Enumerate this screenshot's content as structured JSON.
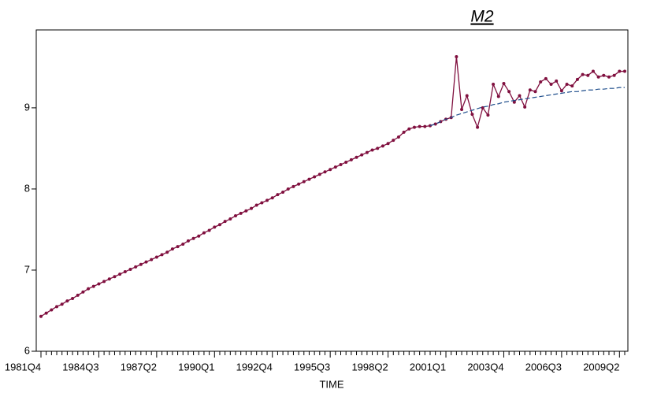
{
  "chart_data": {
    "type": "line",
    "title": "M2",
    "xlabel": "TIME",
    "categories": [
      "1981Q4",
      null,
      null,
      null,
      null,
      null,
      null,
      null,
      null,
      null,
      null,
      "1984Q3",
      null,
      null,
      null,
      null,
      null,
      null,
      null,
      null,
      null,
      null,
      "1987Q2",
      null,
      null,
      null,
      null,
      null,
      null,
      null,
      null,
      null,
      null,
      "1990Q1",
      null,
      null,
      null,
      null,
      null,
      null,
      null,
      null,
      null,
      null,
      "1992Q4",
      null,
      null,
      null,
      null,
      null,
      null,
      null,
      null,
      null,
      null,
      "1995Q3",
      null,
      null,
      null,
      null,
      null,
      null,
      null,
      null,
      null,
      null,
      "1998Q2",
      null,
      null,
      null,
      null,
      null,
      null,
      null,
      null,
      null,
      null,
      "2001Q1",
      null,
      null,
      null,
      null,
      null,
      null,
      null,
      null,
      null,
      null,
      "2003Q4",
      null,
      null,
      null,
      null,
      null,
      null,
      null,
      null,
      null,
      null,
      "2006Q3",
      null,
      null,
      null,
      null,
      null,
      null,
      null,
      null,
      null,
      null,
      "2009Q2",
      null
    ],
    "series": [
      {
        "color": "#80103f",
        "markers": true,
        "dashed": false,
        "values": [
          6.43,
          6.47,
          6.51,
          6.55,
          6.58,
          6.62,
          6.65,
          6.69,
          6.73,
          6.77,
          6.8,
          6.83,
          6.86,
          6.89,
          6.92,
          6.95,
          6.98,
          7.01,
          7.04,
          7.07,
          7.1,
          7.13,
          7.16,
          7.19,
          7.22,
          7.26,
          7.29,
          7.32,
          7.36,
          7.39,
          7.42,
          7.46,
          7.49,
          7.53,
          7.56,
          7.6,
          7.63,
          7.67,
          7.7,
          7.73,
          7.76,
          7.8,
          7.83,
          7.86,
          7.89,
          7.93,
          7.96,
          8.0,
          8.03,
          8.06,
          8.09,
          8.12,
          8.15,
          8.18,
          8.21,
          8.24,
          8.27,
          8.3,
          8.33,
          8.36,
          8.39,
          8.42,
          8.45,
          8.48,
          8.5,
          8.53,
          8.56,
          8.6,
          8.64,
          8.7,
          8.74,
          8.76,
          8.77,
          8.77,
          8.78,
          8.8,
          8.83,
          8.86,
          8.88,
          9.63,
          8.98,
          9.15,
          8.92,
          8.76,
          9.0,
          8.91,
          9.29,
          9.14,
          9.3,
          9.2,
          9.07,
          9.15,
          9.01,
          9.22,
          9.2,
          9.32,
          9.36,
          9.29,
          9.33,
          9.21,
          9.29,
          9.27,
          9.35,
          9.41,
          9.4,
          9.45,
          9.38,
          9.4,
          9.38,
          9.4,
          9.45,
          9.45
        ]
      },
      {
        "color": "#1f4e8c",
        "markers": false,
        "dashed": true,
        "values": [
          null,
          null,
          null,
          null,
          null,
          null,
          null,
          null,
          null,
          null,
          null,
          null,
          null,
          null,
          null,
          null,
          null,
          null,
          null,
          null,
          null,
          null,
          null,
          null,
          null,
          null,
          null,
          null,
          null,
          null,
          null,
          null,
          null,
          null,
          null,
          null,
          null,
          null,
          null,
          null,
          null,
          null,
          null,
          null,
          null,
          null,
          null,
          null,
          null,
          null,
          null,
          null,
          null,
          null,
          null,
          null,
          null,
          null,
          null,
          null,
          null,
          null,
          null,
          null,
          null,
          null,
          null,
          null,
          null,
          null,
          null,
          null,
          null,
          null,
          8.78,
          8.8,
          8.83,
          8.86,
          8.88,
          8.91,
          8.93,
          8.95,
          8.97,
          8.99,
          9.01,
          9.02,
          9.04,
          9.05,
          9.07,
          9.08,
          9.09,
          9.1,
          9.11,
          9.12,
          9.13,
          9.14,
          9.15,
          9.16,
          9.17,
          9.18,
          9.19,
          9.2,
          9.2,
          9.21,
          9.22,
          9.22,
          9.23,
          9.23,
          9.24,
          9.24,
          9.25,
          9.25
        ]
      }
    ],
    "ylim": [
      6,
      9.96
    ],
    "yticks": [
      6,
      7,
      8,
      9
    ],
    "grid": false
  }
}
